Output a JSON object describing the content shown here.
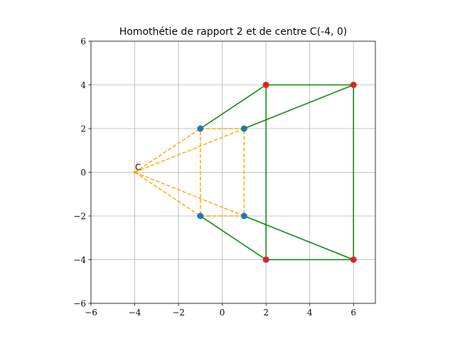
{
  "chart_data": {
    "type": "line",
    "title": "Homothétie de rapport 2 et de centre C(-4, 0)",
    "xlabel": "",
    "ylabel": "",
    "xlim": [
      -6,
      7
    ],
    "ylim": [
      -6,
      6
    ],
    "xticks": [
      -6,
      -4,
      -2,
      0,
      2,
      4,
      6
    ],
    "yticks": [
      -6,
      -4,
      -2,
      0,
      2,
      4,
      6
    ],
    "xtick_labels": [
      "−6",
      "−4",
      "−2",
      "0",
      "2",
      "4",
      "6"
    ],
    "ytick_labels": [
      "−6",
      "−4",
      "−2",
      "0",
      "2",
      "4",
      "6"
    ],
    "grid": true,
    "center": {
      "label": "C",
      "x": -4,
      "y": 0
    },
    "original_points": [
      {
        "x": -1,
        "y": 2
      },
      {
        "x": 1,
        "y": 2
      },
      {
        "x": 1,
        "y": -2
      },
      {
        "x": -1,
        "y": -2
      }
    ],
    "image_points": [
      {
        "x": 2,
        "y": 4
      },
      {
        "x": 6,
        "y": 4
      },
      {
        "x": 6,
        "y": -4
      },
      {
        "x": 2,
        "y": -4
      }
    ],
    "original_color": "#1f77b4",
    "image_color": "#d62728",
    "image_shape_color": "#008000",
    "construction_color": "#ffa500",
    "grid_color": "#b0b0b0"
  }
}
